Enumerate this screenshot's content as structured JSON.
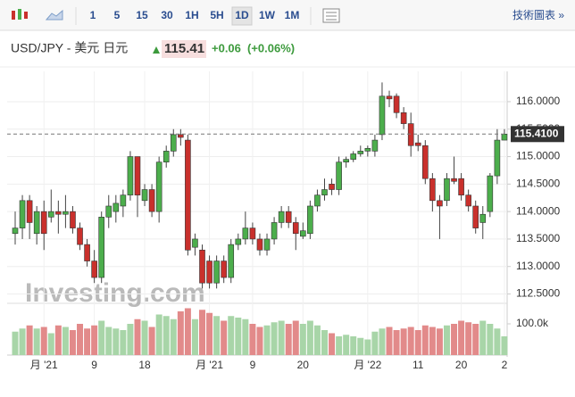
{
  "toolbar": {
    "intervals": [
      "1",
      "5",
      "15",
      "30",
      "1H",
      "5H",
      "1D",
      "1W",
      "1M"
    ],
    "active": "1D",
    "link": "技術圖表 »"
  },
  "header": {
    "symbol": "USD/JPY - 美元 日元",
    "price": "115.41",
    "change": "+0.06",
    "change_pct": "(+0.06%)"
  },
  "chart_data": {
    "type": "candlestick",
    "watermark": "Investing.com",
    "categories": [
      null,
      null,
      null,
      null,
      "月 '21",
      null,
      null,
      null,
      null,
      null,
      null,
      "9",
      null,
      null,
      null,
      null,
      null,
      null,
      "18",
      null,
      null,
      null,
      null,
      null,
      null,
      null,
      null,
      "月 '21",
      null,
      null,
      null,
      null,
      null,
      "9",
      null,
      null,
      null,
      null,
      null,
      null,
      "20",
      null,
      null,
      null,
      null,
      null,
      null,
      null,
      null,
      "月 '22",
      null,
      null,
      null,
      null,
      null,
      null,
      "11",
      null,
      null,
      null,
      null,
      null,
      "20",
      null,
      null,
      null,
      null,
      null,
      "2"
    ],
    "open": [
      113.6,
      113.7,
      114.2,
      113.6,
      114.0,
      113.9,
      114.0,
      113.95,
      114.0,
      113.7,
      113.4,
      113.1,
      112.8,
      113.9,
      114.0,
      114.1,
      114.3,
      115.0,
      114.2,
      114.4,
      114.0,
      114.9,
      115.1,
      115.4,
      115.3,
      113.35,
      113.3,
      113.1,
      112.7,
      113.1,
      112.8,
      113.4,
      113.5,
      113.7,
      113.5,
      113.3,
      113.5,
      113.8,
      114.0,
      113.8,
      113.55,
      113.6,
      114.1,
      114.3,
      114.5,
      114.4,
      114.9,
      114.95,
      115.05,
      115.1,
      115.1,
      115.4,
      116.1,
      116.1,
      115.8,
      115.6,
      115.25,
      115.2,
      114.6,
      114.2,
      114.2,
      114.6,
      114.6,
      114.3,
      114.1,
      113.8,
      114.0,
      114.65,
      115.3
    ],
    "high": [
      114.0,
      114.3,
      114.3,
      114.1,
      114.2,
      114.4,
      114.2,
      114.3,
      114.1,
      113.8,
      113.5,
      113.3,
      114.0,
      114.3,
      114.3,
      114.4,
      115.1,
      115.0,
      114.5,
      114.5,
      115.0,
      115.2,
      115.5,
      115.5,
      115.4,
      113.6,
      113.4,
      113.2,
      113.2,
      113.2,
      113.5,
      113.6,
      114.0,
      113.8,
      113.6,
      113.6,
      113.9,
      114.1,
      114.1,
      113.9,
      113.8,
      114.2,
      114.4,
      114.6,
      114.6,
      115.0,
      115.0,
      115.1,
      115.2,
      115.2,
      115.4,
      116.35,
      116.2,
      116.15,
      115.9,
      115.8,
      115.4,
      115.3,
      114.7,
      114.3,
      114.7,
      115.0,
      114.7,
      114.4,
      114.2,
      114.1,
      114.7,
      115.5,
      115.5
    ],
    "low": [
      113.4,
      113.5,
      113.5,
      113.4,
      113.3,
      113.8,
      113.6,
      113.7,
      113.6,
      113.3,
      113.0,
      112.7,
      112.7,
      113.7,
      113.8,
      113.9,
      114.2,
      113.9,
      114.1,
      113.9,
      113.8,
      114.8,
      115.0,
      115.2,
      113.2,
      113.2,
      112.6,
      112.6,
      112.6,
      112.7,
      112.7,
      113.3,
      113.4,
      113.4,
      113.2,
      113.2,
      113.4,
      113.7,
      113.7,
      113.3,
      113.5,
      113.5,
      114.0,
      114.2,
      114.3,
      114.3,
      114.8,
      114.9,
      115.0,
      115.0,
      115.0,
      115.3,
      115.9,
      115.7,
      115.5,
      115.0,
      115.1,
      114.5,
      114.0,
      113.5,
      114.1,
      114.5,
      114.2,
      114.0,
      113.6,
      113.5,
      113.9,
      114.5,
      115.3
    ],
    "close": [
      113.7,
      114.2,
      113.8,
      114.0,
      113.6,
      114.0,
      113.95,
      114.0,
      113.7,
      113.4,
      113.1,
      112.8,
      113.9,
      114.1,
      114.15,
      114.3,
      115.0,
      114.3,
      114.4,
      114.0,
      114.9,
      115.1,
      115.4,
      115.35,
      113.3,
      113.5,
      112.7,
      112.7,
      113.1,
      112.8,
      113.4,
      113.5,
      113.7,
      113.5,
      113.3,
      113.5,
      113.8,
      114.0,
      113.8,
      113.6,
      113.65,
      114.1,
      114.3,
      114.4,
      114.4,
      114.9,
      114.95,
      115.05,
      115.1,
      115.15,
      115.3,
      116.1,
      116.05,
      115.8,
      115.6,
      115.2,
      115.2,
      114.6,
      114.2,
      114.1,
      114.6,
      114.55,
      114.3,
      114.1,
      113.7,
      113.95,
      114.65,
      115.3,
      115.41
    ],
    "volume": [
      75000,
      85000,
      95000,
      85000,
      90000,
      70000,
      95000,
      90000,
      80000,
      100000,
      85000,
      95000,
      110000,
      90000,
      85000,
      80000,
      100000,
      115000,
      110000,
      90000,
      130000,
      125000,
      115000,
      140000,
      150000,
      115000,
      145000,
      135000,
      125000,
      110000,
      125000,
      120000,
      115000,
      100000,
      90000,
      95000,
      105000,
      110000,
      100000,
      110000,
      100000,
      110000,
      95000,
      80000,
      70000,
      60000,
      65000,
      60000,
      55000,
      50000,
      75000,
      85000,
      90000,
      80000,
      85000,
      90000,
      80000,
      95000,
      90000,
      85000,
      95000,
      100000,
      110000,
      105000,
      100000,
      110000,
      100000,
      85000,
      60000
    ],
    "ylim": [
      112.33,
      116.47
    ],
    "yticks": [
      {
        "value": 112.5,
        "label": "112.5000"
      },
      {
        "value": 113,
        "label": "113.0000"
      },
      {
        "value": 113.5,
        "label": "113.5000"
      },
      {
        "value": 114,
        "label": "114.0000"
      },
      {
        "value": 114.5,
        "label": "114.5000"
      },
      {
        "value": 115,
        "label": "115.0000"
      },
      {
        "value": 115.5,
        "label": "115.5000"
      },
      {
        "value": 116,
        "label": "116.0000"
      }
    ],
    "volume_ylim": [
      0,
      160000
    ],
    "volume_yticks": [
      {
        "value": 100000,
        "label": "100.0k"
      }
    ],
    "last_price": 115.41,
    "last_price_label": "115.4100",
    "up_color": "#4cae4c",
    "down_color": "#c9302c",
    "volume_up_color": "#a8d5a8",
    "volume_down_color": "#e28a8a",
    "grid": true
  }
}
